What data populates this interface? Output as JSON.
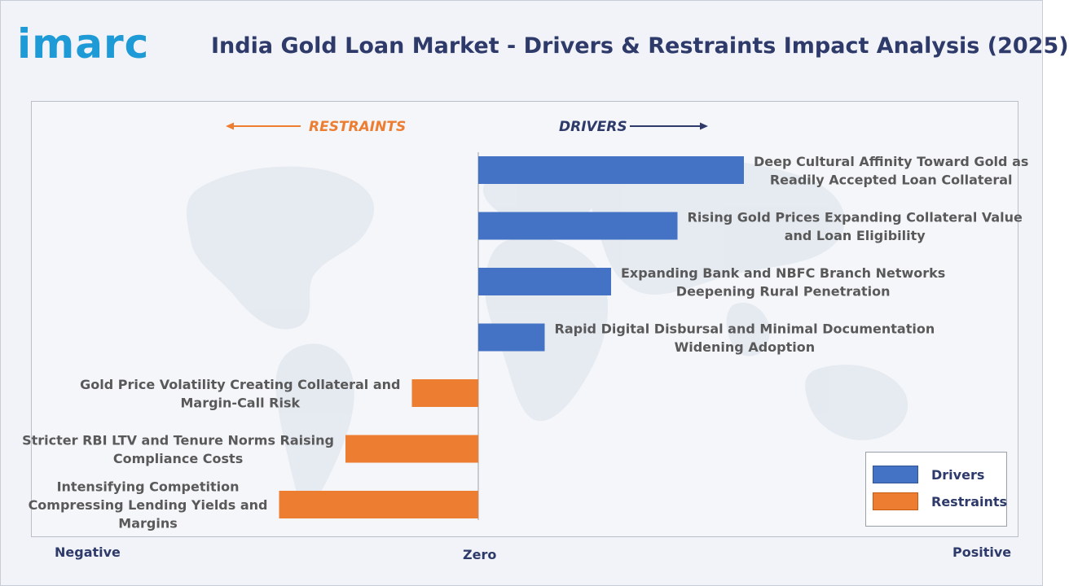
{
  "brand": {
    "logo_text": "imarc"
  },
  "title": "India Gold Loan Market - Drivers & Restraints Impact Analysis (2025)",
  "colors": {
    "drivers": "#4472c4",
    "restraints": "#ed7d31",
    "title": "#2e3a6a",
    "logo": "#1e9ad6",
    "label": "#595959"
  },
  "headers": {
    "restraints": "RESTRAINTS",
    "drivers": "DRIVERS"
  },
  "axis": {
    "negative": "Negative",
    "zero": "Zero",
    "positive": "Positive"
  },
  "legend": [
    {
      "label": "Drivers",
      "series": "drivers"
    },
    {
      "label": "Restraints",
      "series": "restraints"
    }
  ],
  "chart_data": {
    "type": "bar",
    "orientation": "horizontal",
    "xlim": [
      -6,
      8
    ],
    "legend_position": "bottom-right",
    "grid": false,
    "series": [
      {
        "name": "Drivers",
        "color": "#4472c4"
      },
      {
        "name": "Restraints",
        "color": "#ed7d31"
      }
    ],
    "bars": [
      {
        "category": "Deep Cultural Affinity Toward Gold as Readily Accepted Loan Collateral",
        "label_lines": [
          "Deep Cultural Affinity Toward Gold as",
          "Readily Accepted Loan Collateral"
        ],
        "series": "Drivers",
        "value": 4
      },
      {
        "category": "Rising Gold Prices Expanding Collateral Value and Loan Eligibility",
        "label_lines": [
          "Rising Gold Prices Expanding Collateral Value",
          "and Loan Eligibility"
        ],
        "series": "Drivers",
        "value": 3
      },
      {
        "category": "Expanding Bank and NBFC Branch Networks Deepening Rural Penetration",
        "label_lines": [
          "Expanding Bank and NBFC Branch Networks",
          "Deepening Rural Penetration"
        ],
        "series": "Drivers",
        "value": 2
      },
      {
        "category": "Rapid Digital Disbursal and Minimal Documentation Widening Adoption",
        "label_lines": [
          "Rapid Digital Disbursal and Minimal Documentation",
          "Widening Adoption"
        ],
        "series": "Drivers",
        "value": 1
      },
      {
        "category": "Gold Price Volatility Creating Collateral and Margin-Call Risk",
        "label_lines": [
          "Gold Price Volatility Creating Collateral and",
          "Margin-Call Risk"
        ],
        "series": "Restraints",
        "value": -1
      },
      {
        "category": "Stricter RBI LTV and Tenure Norms Raising Compliance Costs",
        "label_lines": [
          "Stricter RBI LTV and Tenure Norms Raising",
          "Compliance Costs"
        ],
        "series": "Restraints",
        "value": -2
      },
      {
        "category": "Intensifying Competition Compressing Lending Yields and Margins",
        "label_lines": [
          "Intensifying Competition",
          "Compressing Lending Yields and",
          "Margins"
        ],
        "series": "Restraints",
        "value": -3
      }
    ]
  }
}
